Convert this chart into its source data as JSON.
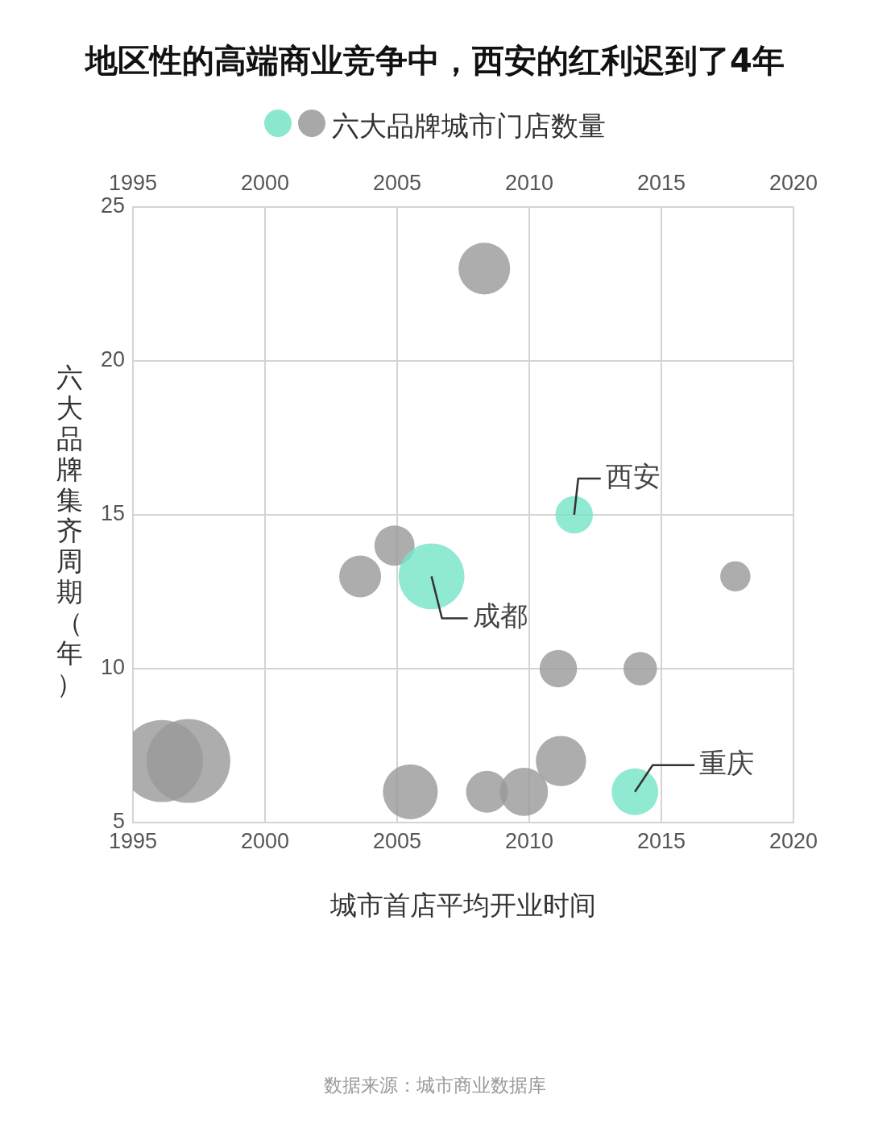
{
  "chart_data": {
    "type": "bubble",
    "title": "地区性的高端商业竞争中，西安的红利迟到了4年",
    "legend_title": "六大品牌城市门店数量",
    "xlabel": "城市首店平均开业时间",
    "ylabel": "六大品牌集齐周期（年）",
    "series": [
      {
        "color": "#74e4c5",
        "x": [
          2011.7,
          2006.3,
          2014.0
        ],
        "values": [
          15,
          13,
          6
        ],
        "sizes": [
          0.2,
          0.62,
          0.31
        ]
      },
      {
        "color": "#999999",
        "x": [
          2008.3,
          2004.9,
          2003.6,
          2011.1,
          2014.2,
          2017.8,
          1996.1,
          1997.1,
          2005.5,
          2008.4,
          2009.8,
          2011.2
        ],
        "values": [
          23,
          14,
          13,
          10,
          10,
          13,
          7,
          7,
          6,
          6,
          6,
          7
        ],
        "sizes": [
          0.38,
          0.23,
          0.25,
          0.2,
          0.16,
          0.13,
          0.96,
          1,
          0.43,
          0.25,
          0.33,
          0.36
        ]
      }
    ],
    "xlim": [
      1995,
      2020
    ],
    "xticks": [
      1995,
      2000,
      2005,
      2010,
      2015,
      2020
    ],
    "x2lim": [
      1995,
      2020
    ],
    "x2ticks": [
      1995,
      2000,
      2005,
      2010,
      2015,
      2020
    ],
    "ylim": [
      5,
      25
    ],
    "yticks": [
      5,
      10,
      15,
      20,
      25
    ],
    "grid": true,
    "annotations": [
      {
        "text": "西安",
        "x": 2011.7,
        "y": 15
      },
      {
        "text": "成都",
        "x": 2006.3,
        "y": 13
      },
      {
        "text": "重庆",
        "x": 2014.0,
        "y": 6
      },
      "数据来源：城市商业数据库"
    ]
  }
}
